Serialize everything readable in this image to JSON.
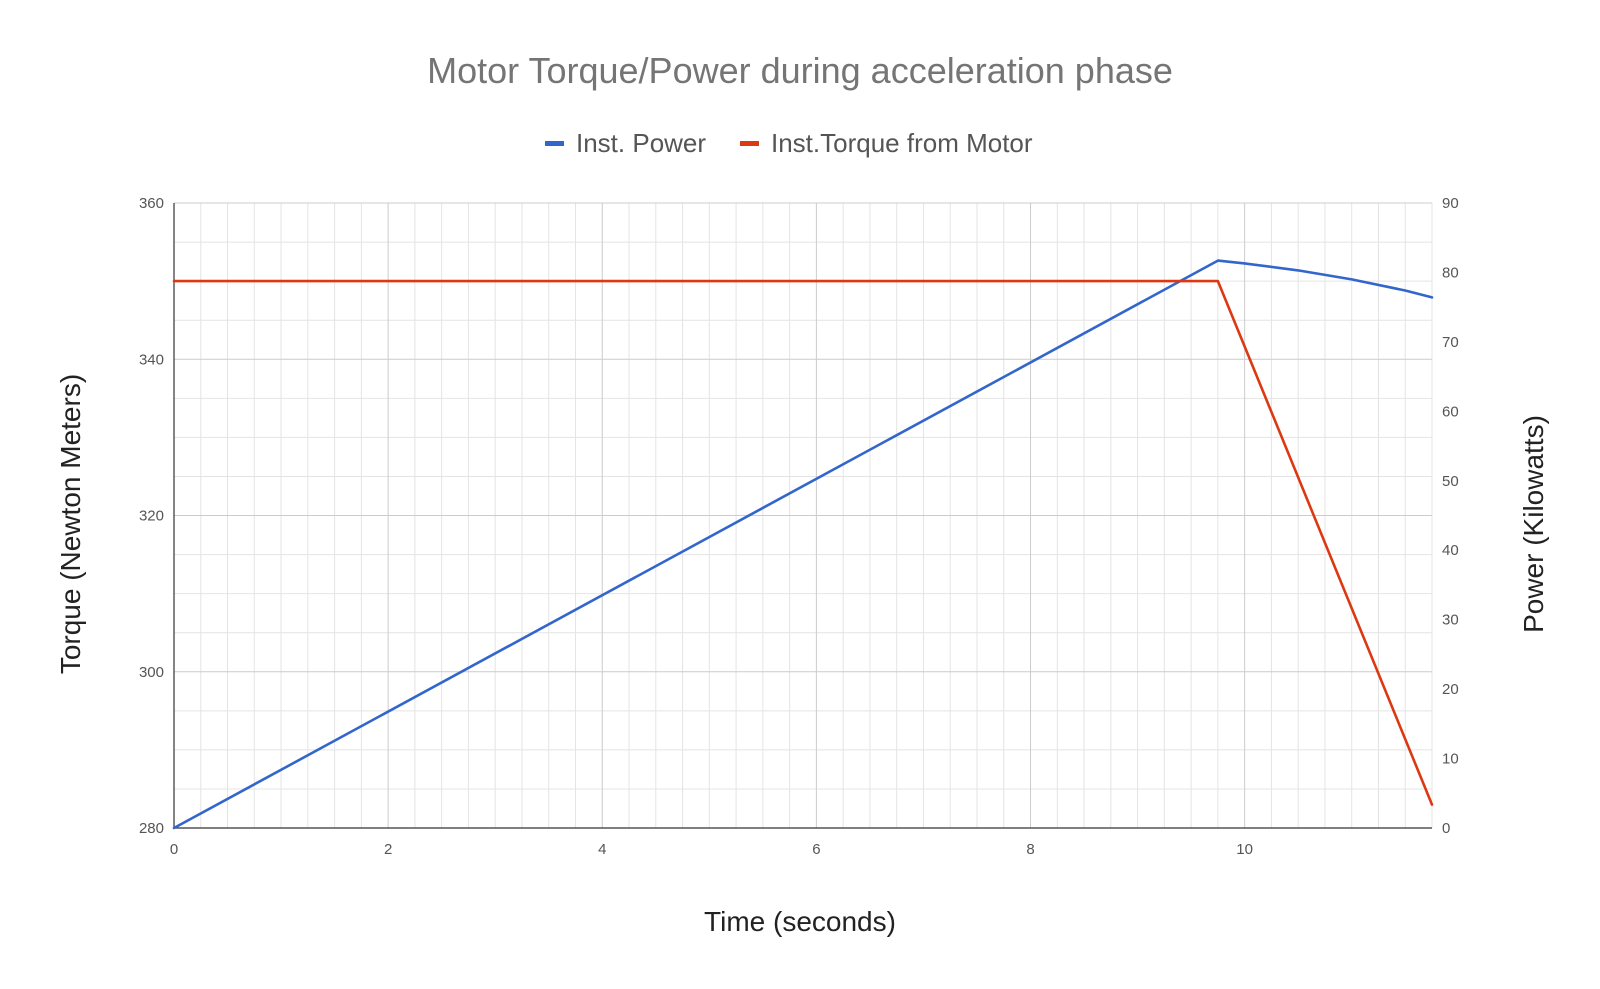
{
  "chart_data": {
    "type": "line",
    "title": "Motor Torque/Power during acceleration phase",
    "xlabel": "Time (seconds)",
    "ylabel_left": "Torque (Newton Meters)",
    "ylabel_right": "Power (Kilowatts)",
    "xlim": [
      0,
      11.75
    ],
    "ylim_left": [
      280,
      360
    ],
    "ylim_right": [
      0,
      90
    ],
    "x_ticks": [
      "0",
      "2",
      "4",
      "6",
      "8",
      "10"
    ],
    "y_left_ticks": [
      "280",
      "300",
      "320",
      "340",
      "360"
    ],
    "y_right_ticks": [
      "0",
      "10",
      "20",
      "30",
      "40",
      "50",
      "60",
      "70",
      "80",
      "90"
    ],
    "grid": true,
    "legend_position": "top",
    "series": [
      {
        "name": "Inst. Power",
        "axis": "right",
        "color": "#3366cc",
        "x": [
          0,
          9.75,
          10.0,
          10.5,
          11.0,
          11.5,
          11.75
        ],
        "y": [
          0,
          81.7,
          81.3,
          80.3,
          79.0,
          77.4,
          76.4
        ]
      },
      {
        "name": "Inst.Torque from Motor",
        "axis": "left",
        "color": "#dc3912",
        "x": [
          0,
          9.75,
          11.75
        ],
        "y": [
          350,
          350,
          283
        ]
      }
    ]
  }
}
